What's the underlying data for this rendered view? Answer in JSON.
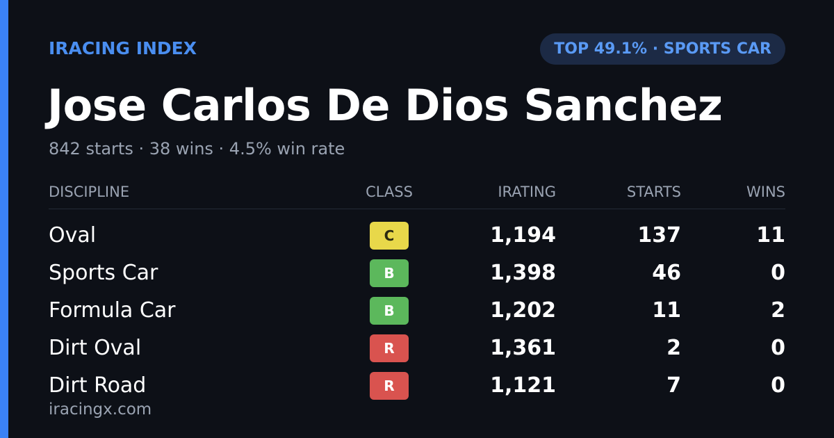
{
  "header": {
    "brand": "IRACING INDEX",
    "badge": "TOP 49.1% · SPORTS CAR"
  },
  "driver": {
    "name": "Jose Carlos De Dios Sanchez",
    "summary": "842 starts · 38 wins · 4.5% win rate"
  },
  "table": {
    "columns": [
      "DISCIPLINE",
      "CLASS",
      "IRATING",
      "STARTS",
      "WINS"
    ],
    "rows": [
      [
        "Oval",
        "C",
        "1,194",
        "137",
        "11"
      ],
      [
        "Sports Car",
        "B",
        "1,398",
        "46",
        "0"
      ],
      [
        "Formula Car",
        "B",
        "1,202",
        "11",
        "2"
      ],
      [
        "Dirt Oval",
        "R",
        "1,361",
        "2",
        "0"
      ],
      [
        "Dirt Road",
        "R",
        "1,121",
        "7",
        "0"
      ]
    ],
    "class_colors": [
      "#e8d84a",
      "#5cb85c",
      "#5cb85c",
      "#d9534f",
      "#d9534f"
    ],
    "class_text_colors": [
      "#2a2a10",
      "#ffffff",
      "#ffffff",
      "#ffffff",
      "#ffffff"
    ]
  },
  "footer": {
    "site": "iracingx.com"
  }
}
